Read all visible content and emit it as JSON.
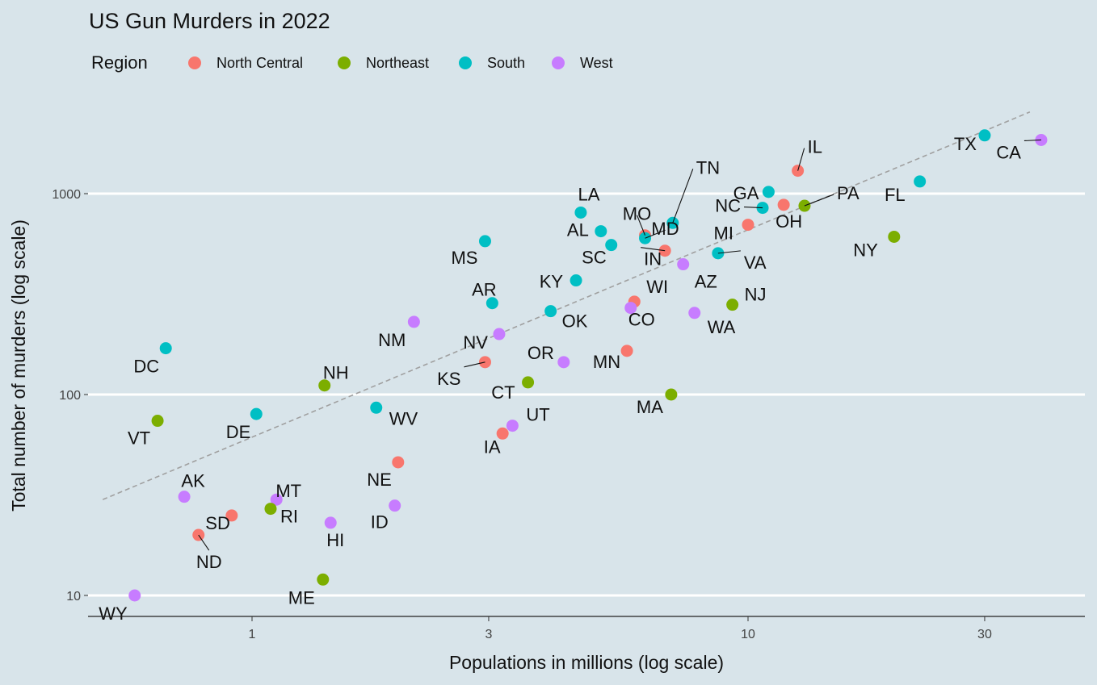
{
  "chart_data": {
    "type": "scatter",
    "title": "US Gun Murders in 2022",
    "xlabel": "Populations in millions (log scale)",
    "ylabel": "Total number of murders (log scale)",
    "x_scale": "log10",
    "y_scale": "log10",
    "xlim": [
      0.5,
      40
    ],
    "ylim": [
      8,
      2700
    ],
    "x_ticks": [
      {
        "value": 1,
        "label": "1"
      },
      {
        "value": 3,
        "label": "3"
      },
      {
        "value": 10,
        "label": "10"
      },
      {
        "value": 30,
        "label": "30"
      }
    ],
    "y_ticks": [
      {
        "value": 10,
        "label": "10"
      },
      {
        "value": 100,
        "label": "100"
      },
      {
        "value": 1000,
        "label": "1000"
      }
    ],
    "grid": "horizontal major lines",
    "legend": {
      "title": "Region",
      "position": "top-left",
      "entries": [
        {
          "name": "North Central",
          "color": "#f8766d"
        },
        {
          "name": "Northeast",
          "color": "#7cae00"
        },
        {
          "name": "South",
          "color": "#00bfc4"
        },
        {
          "name": "West",
          "color": "#c77cff"
        }
      ]
    },
    "trend_line": {
      "style": "dashed",
      "color": "#a0a0a0",
      "from": {
        "x": 0.5,
        "y": 30
      },
      "to": {
        "x": 37,
        "y": 2550
      }
    },
    "points": [
      {
        "state": "CA",
        "region": "West",
        "pop": 39,
        "murders": 1850
      },
      {
        "state": "TX",
        "region": "South",
        "pop": 30,
        "murders": 1950
      },
      {
        "state": "FL",
        "region": "South",
        "pop": 22.2,
        "murders": 1150
      },
      {
        "state": "NY",
        "region": "Northeast",
        "pop": 19.7,
        "murders": 610
      },
      {
        "state": "PA",
        "region": "Northeast",
        "pop": 13,
        "murders": 870
      },
      {
        "state": "IL",
        "region": "North Central",
        "pop": 12.6,
        "murders": 1300
      },
      {
        "state": "OH",
        "region": "North Central",
        "pop": 11.8,
        "murders": 880
      },
      {
        "state": "GA",
        "region": "South",
        "pop": 11,
        "murders": 1020
      },
      {
        "state": "NC",
        "region": "South",
        "pop": 10.7,
        "murders": 850
      },
      {
        "state": "MI",
        "region": "North Central",
        "pop": 10,
        "murders": 700
      },
      {
        "state": "NJ",
        "region": "Northeast",
        "pop": 9.3,
        "murders": 280
      },
      {
        "state": "VA",
        "region": "South",
        "pop": 8.7,
        "murders": 505
      },
      {
        "state": "WA",
        "region": "West",
        "pop": 7.8,
        "murders": 255
      },
      {
        "state": "AZ",
        "region": "West",
        "pop": 7.4,
        "murders": 445
      },
      {
        "state": "TN",
        "region": "South",
        "pop": 7.05,
        "murders": 715
      },
      {
        "state": "MA",
        "region": "Northeast",
        "pop": 7,
        "murders": 100
      },
      {
        "state": "IN",
        "region": "North Central",
        "pop": 6.8,
        "murders": 520
      },
      {
        "state": "MO",
        "region": "North Central",
        "pop": 6.2,
        "murders": 620
      },
      {
        "state": "MD",
        "region": "South",
        "pop": 6.2,
        "murders": 600
      },
      {
        "state": "WI",
        "region": "North Central",
        "pop": 5.9,
        "murders": 290
      },
      {
        "state": "CO",
        "region": "West",
        "pop": 5.8,
        "murders": 270
      },
      {
        "state": "MN",
        "region": "North Central",
        "pop": 5.7,
        "murders": 165
      },
      {
        "state": "SC",
        "region": "South",
        "pop": 5.3,
        "murders": 555
      },
      {
        "state": "AL",
        "region": "South",
        "pop": 5.05,
        "murders": 650
      },
      {
        "state": "LA",
        "region": "South",
        "pop": 4.6,
        "murders": 805
      },
      {
        "state": "KY",
        "region": "South",
        "pop": 4.5,
        "murders": 370
      },
      {
        "state": "OR",
        "region": "West",
        "pop": 4.25,
        "murders": 145
      },
      {
        "state": "OK",
        "region": "South",
        "pop": 4.0,
        "murders": 260
      },
      {
        "state": "CT",
        "region": "Northeast",
        "pop": 3.6,
        "murders": 115
      },
      {
        "state": "UT",
        "region": "West",
        "pop": 3.35,
        "murders": 70
      },
      {
        "state": "IA",
        "region": "North Central",
        "pop": 3.2,
        "murders": 64
      },
      {
        "state": "NV",
        "region": "West",
        "pop": 3.15,
        "murders": 200
      },
      {
        "state": "AR",
        "region": "South",
        "pop": 3.05,
        "murders": 285
      },
      {
        "state": "MS",
        "region": "South",
        "pop": 2.95,
        "murders": 580
      },
      {
        "state": "KS",
        "region": "North Central",
        "pop": 2.95,
        "murders": 145
      },
      {
        "state": "NM",
        "region": "West",
        "pop": 2.12,
        "murders": 230
      },
      {
        "state": "NE",
        "region": "North Central",
        "pop": 1.97,
        "murders": 46
      },
      {
        "state": "ID",
        "region": "West",
        "pop": 1.94,
        "murders": 28
      },
      {
        "state": "WV",
        "region": "South",
        "pop": 1.78,
        "murders": 86
      },
      {
        "state": "HI",
        "region": "West",
        "pop": 1.44,
        "murders": 23
      },
      {
        "state": "NH",
        "region": "Northeast",
        "pop": 1.4,
        "murders": 111
      },
      {
        "state": "ME",
        "region": "Northeast",
        "pop": 1.39,
        "murders": 12
      },
      {
        "state": "MT",
        "region": "West",
        "pop": 1.12,
        "murders": 30
      },
      {
        "state": "RI",
        "region": "Northeast",
        "pop": 1.09,
        "murders": 27
      },
      {
        "state": "DE",
        "region": "South",
        "pop": 1.02,
        "murders": 80
      },
      {
        "state": "SD",
        "region": "North Central",
        "pop": 0.91,
        "murders": 25
      },
      {
        "state": "ND",
        "region": "North Central",
        "pop": 0.78,
        "murders": 20
      },
      {
        "state": "AK",
        "region": "West",
        "pop": 0.73,
        "murders": 31
      },
      {
        "state": "DC",
        "region": "South",
        "pop": 0.67,
        "murders": 170
      },
      {
        "state": "VT",
        "region": "Northeast",
        "pop": 0.645,
        "murders": 74
      },
      {
        "state": "WY",
        "region": "West",
        "pop": 0.58,
        "murders": 10
      }
    ]
  }
}
